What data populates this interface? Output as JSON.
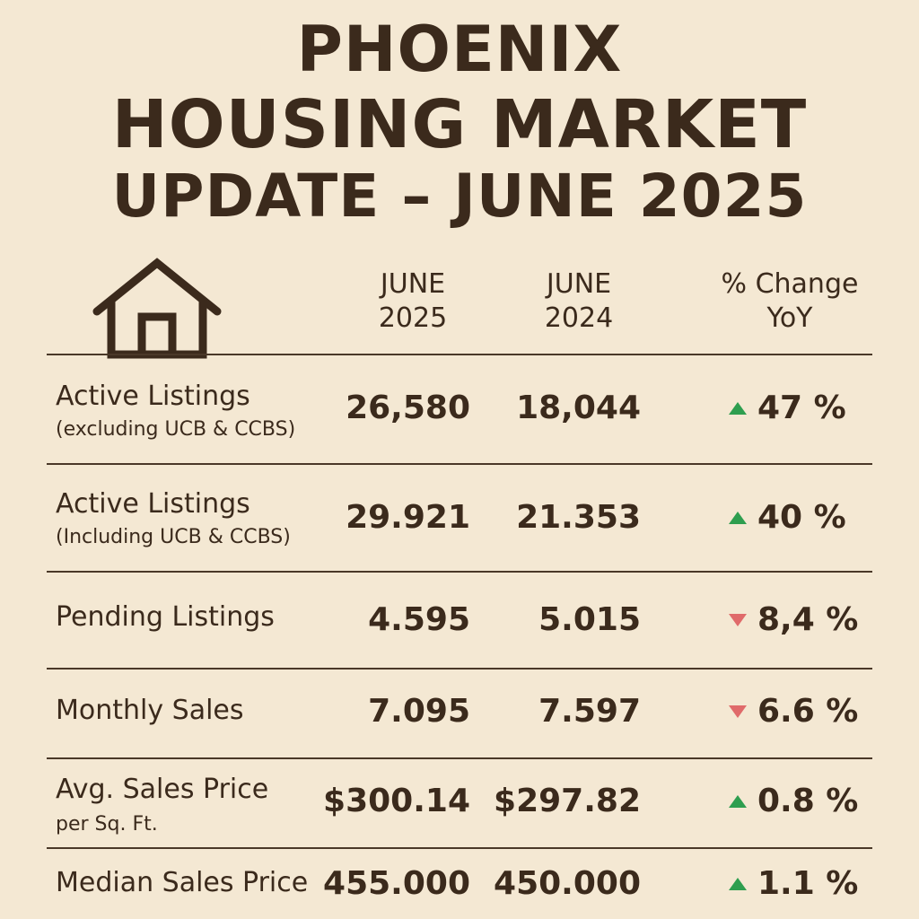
{
  "title": {
    "line1": "PHOENIX",
    "line2": "HOUSING MARKET",
    "line3": "UPDATE – JUNE 2025"
  },
  "icon": "house-icon",
  "colors": {
    "background": "#f4e8d3",
    "text": "#3b2a1c",
    "up": "#2e9e4f",
    "down": "#e06a6a"
  },
  "headers": {
    "col1_line1": "JUNE",
    "col1_line2": "2025",
    "col2_line1": "JUNE",
    "col2_line2": "2024",
    "col3_line1": "% Change",
    "col3_line2": "YoY"
  },
  "rows": [
    {
      "label": "Active Listings",
      "sublabel": "(excluding UCB & CCBS)",
      "v2025": "26,580",
      "v2024": "18,044",
      "change": "47 %",
      "direction": "up"
    },
    {
      "label": "Active Listings",
      "sublabel": "(Including UCB & CCBS)",
      "v2025": "29.921",
      "v2024": "21.353",
      "change": "40 %",
      "direction": "up"
    },
    {
      "label": "Pending Listings",
      "sublabel": "",
      "v2025": "4.595",
      "v2024": "5.015",
      "change": "8,4 %",
      "direction": "down"
    },
    {
      "label": "Monthly Sales",
      "sublabel": "",
      "v2025": "7.095",
      "v2024": "7.597",
      "change": "6.6 %",
      "direction": "down"
    },
    {
      "label": "Avg. Sales Price",
      "sublabel": "per Sq. Ft.",
      "v2025": "$300.14",
      "v2024": "$297.82",
      "change": "0.8 %",
      "direction": "up"
    },
    {
      "label": "Median Sales Price",
      "sublabel": "",
      "v2025": "455.000",
      "v2024": "450.000",
      "change": "1.1 %",
      "direction": "up"
    }
  ]
}
